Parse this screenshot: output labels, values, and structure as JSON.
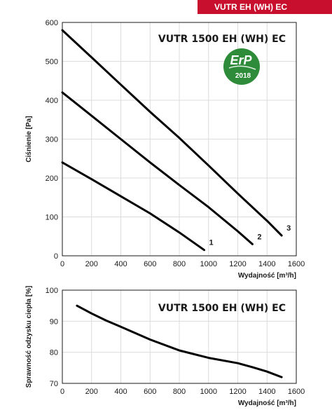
{
  "header": {
    "badge_label": "VUTR EH (WH) EC"
  },
  "erp_logo": {
    "text": "ErP",
    "year": "2018",
    "color": "#2e8b3a"
  },
  "colors": {
    "badge": "#c8102e",
    "curve": "#000000",
    "grid": "#dcdcdc"
  },
  "chart_data": [
    {
      "type": "line",
      "title": "VUTR 1500 EH (WH) EC",
      "xlabel": "Wydajność [m³/h]",
      "ylabel": "Ciśnienie [Pa]",
      "xlim": [
        0,
        1600
      ],
      "ylim": [
        0,
        600
      ],
      "xticks": [
        "0",
        "200",
        "400",
        "600",
        "800",
        "1000",
        "1200",
        "1400",
        "1600"
      ],
      "yticks": [
        "0",
        "100",
        "200",
        "300",
        "400",
        "500",
        "600"
      ],
      "grid": true,
      "series": [
        {
          "name": "1",
          "x": [
            0,
            200,
            400,
            600,
            800,
            970
          ],
          "y": [
            240,
            197,
            153,
            109,
            60,
            15
          ]
        },
        {
          "name": "2",
          "x": [
            0,
            200,
            400,
            600,
            800,
            1000,
            1200,
            1300
          ],
          "y": [
            420,
            360,
            300,
            240,
            182,
            125,
            63,
            30
          ]
        },
        {
          "name": "3",
          "x": [
            0,
            200,
            400,
            600,
            800,
            1000,
            1200,
            1400,
            1500
          ],
          "y": [
            580,
            510,
            440,
            370,
            303,
            232,
            160,
            90,
            52
          ]
        }
      ]
    },
    {
      "type": "line",
      "title": "VUTR 1500 EH (WH) EC",
      "xlabel": "Wydajność [m³/h]",
      "ylabel": "Sprawność odzysku ciepła [%]",
      "xlim": [
        0,
        1600
      ],
      "ylim": [
        70,
        100
      ],
      "xticks": [
        "0",
        "200",
        "400",
        "600",
        "800",
        "1000",
        "1200",
        "1400",
        "1600"
      ],
      "yticks": [
        "70",
        "80",
        "90",
        "100"
      ],
      "grid": true,
      "series": [
        {
          "x": [
            100,
            200,
            300,
            400,
            600,
            800,
            1000,
            1200,
            1300,
            1400,
            1500
          ],
          "y": [
            95,
            92.5,
            90.2,
            88.2,
            84.1,
            80.6,
            78.2,
            76.5,
            75.2,
            73.8,
            72
          ]
        }
      ]
    }
  ]
}
